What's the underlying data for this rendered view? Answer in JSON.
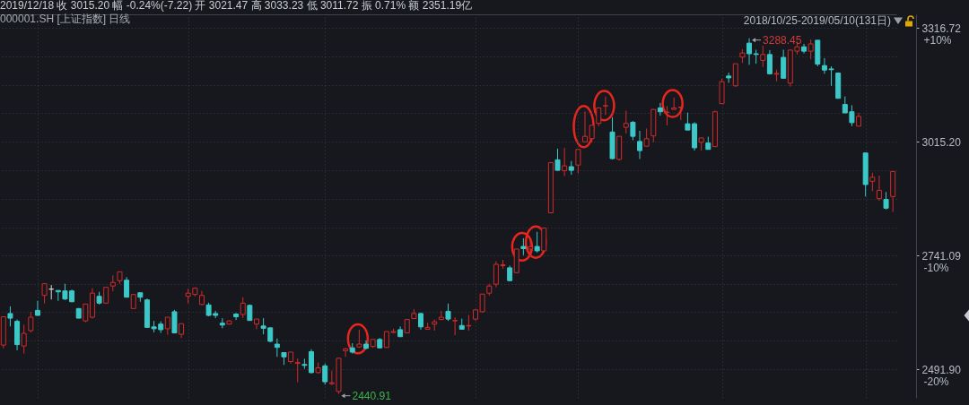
{
  "chart_data": {
    "type": "candlestick",
    "title": "2019/12/18 收 3015.20 幅 -0.24%(-7.22) 开 3021.47 高 3033.23 低 3011.72 振 0.71% 额 2351.19亿",
    "subtitle": "000001.SH [上证指数] 日线",
    "annotations": [
      "2018/10/25-2019/05/10(131日)",
      "3288.45",
      "2440.91"
    ],
    "categories": [
      null,
      null,
      null,
      null,
      null,
      null,
      null,
      null,
      null,
      null,
      null,
      null,
      null,
      null,
      null,
      null,
      null,
      null,
      null,
      null,
      null,
      null,
      null,
      null,
      null,
      null,
      null,
      null,
      null,
      null,
      null,
      null,
      null,
      null,
      null,
      null,
      null,
      null,
      null,
      null,
      null,
      null,
      null,
      null,
      null,
      null,
      null,
      null,
      null,
      null,
      null,
      null,
      null,
      null,
      null,
      null,
      null,
      null,
      null,
      null,
      null,
      null,
      null,
      null,
      null,
      null,
      null,
      null,
      null,
      null,
      null,
      null,
      null,
      null,
      null,
      null,
      null,
      null,
      null,
      null,
      null,
      null,
      null,
      null,
      null,
      null,
      null,
      null,
      null,
      null,
      null,
      null,
      null,
      null,
      null,
      null,
      null,
      null,
      null,
      null,
      null,
      null,
      null,
      null,
      null,
      null,
      null,
      null,
      null,
      null,
      null,
      null,
      null,
      null,
      null,
      null,
      null,
      null,
      null,
      null,
      null,
      null,
      null,
      null,
      null,
      null,
      null,
      null,
      null,
      null,
      null
    ],
    "ohlc": [
      [
        2543,
        2605,
        2536,
        2604
      ],
      [
        2611,
        2627,
        2583,
        2601
      ],
      [
        2594,
        2598,
        2532,
        2544
      ],
      [
        2541,
        2587,
        2525,
        2568
      ],
      [
        2574,
        2615,
        2570,
        2603
      ],
      [
        2618,
        2639,
        2607,
        2607
      ],
      [
        2651,
        2677,
        2633,
        2677
      ],
      [
        2665,
        2674,
        2642,
        2665
      ],
      [
        2662,
        2662,
        2639,
        2659
      ],
      [
        2661,
        2677,
        2641,
        2643
      ],
      [
        2661,
        2664,
        2636,
        2637
      ],
      [
        2622,
        2623,
        2601,
        2601
      ],
      [
        2595,
        2632,
        2592,
        2632
      ],
      [
        2603,
        2667,
        2600,
        2656
      ],
      [
        2649,
        2659,
        2631,
        2634
      ],
      [
        2634,
        2669,
        2634,
        2669
      ],
      [
        2672,
        2696,
        2660,
        2680
      ],
      [
        2684,
        2704,
        2677,
        2704
      ],
      [
        2685,
        2692,
        2647,
        2647
      ],
      [
        2622,
        2653,
        2622,
        2653
      ],
      [
        2657,
        2657,
        2637,
        2647
      ],
      [
        2641,
        2644,
        2580,
        2581
      ],
      [
        2582,
        2595,
        2570,
        2578
      ],
      [
        2588,
        2594,
        2569,
        2576
      ],
      [
        2578,
        2603,
        2565,
        2603
      ],
      [
        2615,
        2619,
        2569,
        2569
      ],
      [
        2566,
        2589,
        2558,
        2589
      ],
      [
        2649,
        2666,
        2633,
        2656
      ],
      [
        2653,
        2669,
        2649,
        2667
      ],
      [
        2631,
        2661,
        2629,
        2651
      ],
      [
        2630,
        2635,
        2605,
        2607
      ],
      [
        2611,
        2617,
        2601,
        2607
      ],
      [
        2590,
        2601,
        2579,
        2586
      ],
      [
        2588,
        2596,
        2587,
        2595
      ],
      [
        2610,
        2612,
        2597,
        2604
      ],
      [
        2609,
        2647,
        2601,
        2634
      ],
      [
        2629,
        2631,
        2596,
        2596
      ],
      [
        2588,
        2599,
        2577,
        2599
      ],
      [
        2584,
        2601,
        2566,
        2579
      ],
      [
        2580,
        2581,
        2549,
        2551
      ],
      [
        2545,
        2557,
        2518,
        2538
      ],
      [
        2527,
        2527,
        2501,
        2518
      ],
      [
        2508,
        2528,
        2504,
        2528
      ],
      [
        2504,
        2515,
        2465,
        2506
      ],
      [
        2502,
        2514,
        2493,
        2500
      ],
      [
        2529,
        2534,
        2483,
        2485
      ],
      [
        2485,
        2506,
        2483,
        2495
      ],
      [
        2499,
        2504,
        2460,
        2466
      ],
      [
        2462,
        2489,
        2459,
        2464
      ],
      [
        2446,
        2516,
        2440.91,
        2515
      ],
      [
        2531,
        2537,
        2518,
        2535
      ],
      [
        2537,
        2547,
        2525,
        2528
      ],
      [
        2539,
        2576,
        2537,
        2545
      ],
      [
        2545,
        2553,
        2534,
        2536
      ],
      [
        2540,
        2555,
        2537,
        2555
      ],
      [
        2555,
        2558,
        2536,
        2537
      ],
      [
        2538,
        2572,
        2537,
        2572
      ],
      [
        2570,
        2578,
        2568,
        2572
      ],
      [
        2576,
        2583,
        2560,
        2561
      ],
      [
        2569,
        2598,
        2569,
        2598
      ],
      [
        2600,
        2621,
        2600,
        2611
      ],
      [
        2611,
        2613,
        2576,
        2582
      ],
      [
        2577,
        2591,
        2577,
        2581
      ],
      [
        2588,
        2598,
        2574,
        2593
      ],
      [
        2598,
        2617,
        2598,
        2603
      ],
      [
        2616,
        2633,
        2595,
        2599
      ],
      [
        2595,
        2603,
        2564,
        2596
      ],
      [
        2585,
        2600,
        2577,
        2577
      ],
      [
        2584,
        2608,
        2574,
        2585
      ],
      [
        2599,
        2620,
        2595,
        2619
      ],
      [
        2615,
        2654,
        2613,
        2654
      ],
      [
        2656,
        2677,
        2651,
        2672
      ],
      [
        2676,
        2728,
        2669,
        2721
      ],
      [
        2718,
        2731,
        2711,
        2720
      ],
      [
        2713,
        2718,
        2683,
        2684
      ],
      [
        2702,
        2756,
        2702,
        2756
      ],
      [
        2762,
        2781,
        2742,
        2757
      ],
      [
        2756,
        2778,
        2745,
        2761
      ],
      [
        2762,
        2796,
        2748,
        2752
      ],
      [
        2752,
        2806,
        2752,
        2805
      ],
      [
        2841,
        2963,
        2841,
        2963
      ],
      [
        2970,
        2998,
        2943,
        2944
      ],
      [
        2943,
        3000,
        2930,
        2955
      ],
      [
        2953,
        2967,
        2933,
        2944
      ],
      [
        2957,
        2996,
        2936,
        2996
      ],
      [
        3015,
        3093,
        3015,
        3029
      ],
      [
        3023,
        3057,
        3013,
        3057
      ],
      [
        3062,
        3102,
        3055,
        3102
      ],
      [
        3107,
        3132,
        3084,
        3108
      ],
      [
        3040,
        3078,
        2971,
        2973
      ],
      [
        2971,
        3029,
        2968,
        3029
      ],
      [
        3052,
        3095,
        3036,
        3062
      ],
      [
        3065,
        3068,
        3019,
        3029
      ],
      [
        3016,
        3043,
        2972,
        2993
      ],
      [
        3004,
        3049,
        3004,
        3023
      ],
      [
        3030,
        3098,
        3014,
        3098
      ],
      [
        3102,
        3115,
        3082,
        3092
      ],
      [
        3090,
        3107,
        3057,
        3091
      ],
      [
        3098,
        3129,
        3098,
        3102
      ],
      [
        3103,
        3105,
        3070,
        3104
      ],
      [
        3061,
        3090,
        3045,
        3045
      ],
      [
        3061,
        3065,
        2993,
        3000
      ],
      [
        3014,
        3025,
        2993,
        3025
      ],
      [
        3012,
        3028,
        2996,
        2996
      ],
      [
        3003,
        3095,
        3003,
        3092
      ],
      [
        3113,
        3179,
        3113,
        3171
      ],
      [
        3186,
        3195,
        3168,
        3181
      ],
      [
        3160,
        3219,
        3157,
        3219
      ],
      [
        3237,
        3258,
        3221,
        3248
      ],
      [
        3275,
        3288.45,
        3216,
        3246
      ],
      [
        3246,
        3257,
        3219,
        3244
      ],
      [
        3228,
        3268,
        3210,
        3244
      ],
      [
        3244,
        3256,
        3192,
        3192
      ],
      [
        3191,
        3203,
        3172,
        3193
      ],
      [
        3236,
        3257,
        3180,
        3180
      ],
      [
        3167,
        3256,
        3158,
        3256
      ],
      [
        3253,
        3279,
        3244,
        3265
      ],
      [
        3265,
        3273,
        3247,
        3253
      ],
      [
        3253,
        3285,
        3231,
        3273
      ],
      [
        3283,
        3283,
        3212,
        3218
      ],
      [
        3214,
        3234,
        3192,
        3202
      ],
      [
        3205,
        3212,
        3160,
        3203
      ],
      [
        3194,
        3195,
        3127,
        3127
      ],
      [
        3111,
        3132,
        3089,
        3089
      ],
      [
        3092,
        3109,
        3055,
        3064
      ],
      [
        3055,
        3089,
        3055,
        3080
      ],
      [
        2987,
        2987,
        2880,
        2909
      ],
      [
        2917,
        2938,
        2893,
        2927
      ],
      [
        2875,
        2931,
        2870,
        2895
      ],
      [
        2873,
        2891,
        2849,
        2852
      ],
      [
        2880,
        2941,
        2843,
        2941
      ]
    ],
    "colors": [
      "#d42a2a",
      "#3cc8c8",
      "#3cc8c8",
      "#d42a2a",
      "#d42a2a",
      "#3cc8c8",
      "#d42a2a",
      "#d8d8d8",
      "#3cc8c8",
      "#3cc8c8",
      "#3cc8c8",
      "#3cc8c8",
      "#d42a2a",
      "#d42a2a",
      "#3cc8c8",
      "#d42a2a",
      "#d42a2a",
      "#d42a2a",
      "#3cc8c8",
      "#d42a2a",
      "#3cc8c8",
      "#3cc8c8",
      "#3cc8c8",
      "#3cc8c8",
      "#d42a2a",
      "#3cc8c8",
      "#d42a2a",
      "#d42a2a",
      "#d42a2a",
      "#d42a2a",
      "#3cc8c8",
      "#3cc8c8",
      "#3cc8c8",
      "#d42a2a",
      "#3cc8c8",
      "#d42a2a",
      "#3cc8c8",
      "#d42a2a",
      "#3cc8c8",
      "#3cc8c8",
      "#3cc8c8",
      "#3cc8c8",
      "#d42a2a",
      "#d42a2a",
      "#3cc8c8",
      "#3cc8c8",
      "#d42a2a",
      "#3cc8c8",
      "#d42a2a",
      "#d42a2a",
      "#d42a2a",
      "#3cc8c8",
      "#d42a2a",
      "#3cc8c8",
      "#d42a2a",
      "#3cc8c8",
      "#d42a2a",
      "#d42a2a",
      "#3cc8c8",
      "#d42a2a",
      "#d42a2a",
      "#3cc8c8",
      "#d42a2a",
      "#d42a2a",
      "#d42a2a",
      "#3cc8c8",
      "#d42a2a",
      "#3cc8c8",
      "#d42a2a",
      "#d42a2a",
      "#d42a2a",
      "#d42a2a",
      "#d42a2a",
      "#d42a2a",
      "#3cc8c8",
      "#d42a2a",
      "#3cc8c8",
      "#d42a2a",
      "#3cc8c8",
      "#d42a2a",
      "#d42a2a",
      "#3cc8c8",
      "#d42a2a",
      "#3cc8c8",
      "#d42a2a",
      "#d42a2a",
      "#d42a2a",
      "#d42a2a",
      "#d42a2a",
      "#3cc8c8",
      "#d42a2a",
      "#d42a2a",
      "#3cc8c8",
      "#3cc8c8",
      "#d42a2a",
      "#d42a2a",
      "#3cc8c8",
      "#d42a2a",
      "#d42a2a",
      "#d42a2a",
      "#3cc8c8",
      "#3cc8c8",
      "#d42a2a",
      "#3cc8c8",
      "#d42a2a",
      "#d42a2a",
      "#3cc8c8",
      "#d42a2a",
      "#d42a2a",
      "#3cc8c8",
      "#3cc8c8",
      "#d42a2a",
      "#3cc8c8",
      "#d42a2a",
      "#3cc8c8",
      "#d42a2a",
      "#d42a2a",
      "#3cc8c8",
      "#d42a2a",
      "#3cc8c8",
      "#3cc8c8",
      "#3cc8c8",
      "#3cc8c8",
      "#3cc8c8",
      "#3cc8c8",
      "#d42a2a",
      "#3cc8c8",
      "#d42a2a",
      "#d42a2a",
      "#3cc8c8",
      "#d42a2a"
    ],
    "ylim": [
      2433,
      3355
    ],
    "yticks": [
      3316.72,
      {
        "value": 3239,
        "label": null
      },
      {
        "value": 3162,
        "label": null
      },
      {
        "value": 3088,
        "label": null
      },
      {
        "value": 3015.2,
        "label": "3015.20"
      },
      {
        "value": 2944,
        "label": null
      },
      {
        "value": 2875,
        "label": null
      },
      {
        "value": 2807,
        "label": null
      },
      2741.09,
      {
        "value": 2677,
        "label": null
      },
      {
        "value": 2614,
        "label": null
      },
      {
        "value": 2552,
        "label": null
      },
      {
        "value": 2491.9,
        "label": "2491.90"
      }
    ],
    "y2lim": [
      -22.51,
      11.2
    ],
    "y2ticks": [
      {
        "value": 10,
        "label": "+10%"
      },
      {
        "value": -10,
        "label": "-10%"
      },
      {
        "value": -20,
        "label": "-20%"
      }
    ],
    "log": true,
    "grid": true,
    "tick_labels": "y"
  }
}
